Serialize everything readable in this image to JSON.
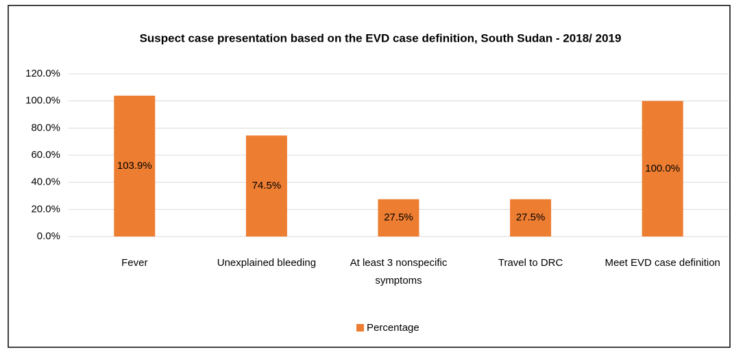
{
  "chart_data": {
    "type": "bar",
    "title": "Suspect case presentation based on the EVD case definition, South Sudan - 2018/ 2019",
    "categories": [
      "Fever",
      "Unexplained bleeding",
      "At least 3 nonspecific symptoms",
      "Travel to DRC",
      "Meet EVD case definition"
    ],
    "series": [
      {
        "name": "Percentage",
        "color": "#ed7d31",
        "values": [
          103.9,
          74.5,
          27.5,
          27.5,
          100.0
        ],
        "value_labels": [
          "103.9%",
          "74.5%",
          "27.5%",
          "27.5%",
          "100.0%"
        ]
      }
    ],
    "ylim": [
      0,
      120
    ],
    "yticks": [
      {
        "value": 0,
        "label": "0.0%"
      },
      {
        "value": 20,
        "label": "20.0%"
      },
      {
        "value": 40,
        "label": "40.0%"
      },
      {
        "value": 60,
        "label": "60.0%"
      },
      {
        "value": 80,
        "label": "80.0%"
      },
      {
        "value": 100,
        "label": "100.0%"
      },
      {
        "value": 120,
        "label": "120.0%"
      }
    ],
    "grid": true,
    "legend": "bottom"
  }
}
